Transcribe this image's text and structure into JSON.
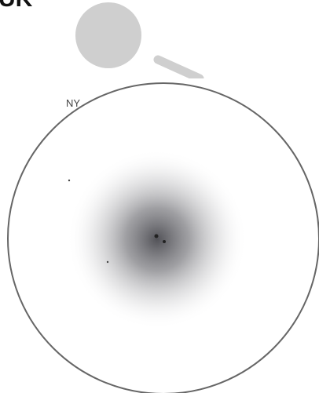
{
  "labels": {
    "top": "UK",
    "circle": "NY"
  }
}
